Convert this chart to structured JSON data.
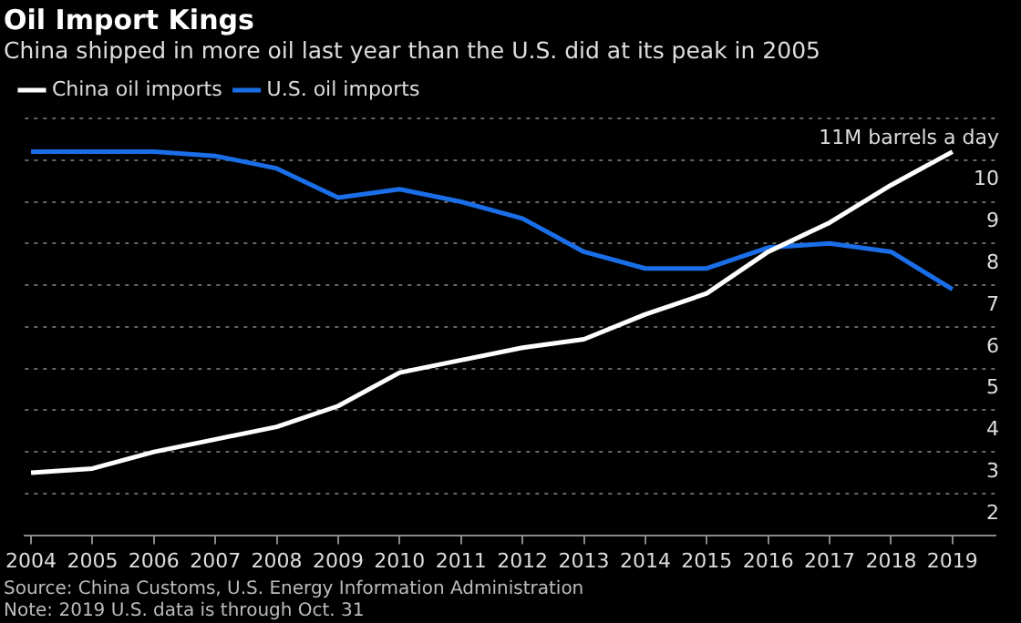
{
  "chart_data": {
    "type": "line",
    "title": "Oil Import Kings",
    "subtitle": "China shipped in more oil last year than the U.S. did at its peak in 2005",
    "x": [
      2004,
      2005,
      2006,
      2007,
      2008,
      2009,
      2010,
      2011,
      2012,
      2013,
      2014,
      2015,
      2016,
      2017,
      2018,
      2019
    ],
    "series": [
      {
        "name": "China oil imports",
        "color": "#ffffff",
        "values": [
          2.5,
          2.6,
          3.0,
          3.3,
          3.6,
          4.1,
          4.9,
          5.2,
          5.5,
          5.7,
          6.3,
          6.8,
          7.8,
          8.5,
          9.4,
          10.2
        ]
      },
      {
        "name": "U.S. oil imports",
        "color": "#1a6ee8",
        "values": [
          10.2,
          10.2,
          10.2,
          10.1,
          9.8,
          9.1,
          9.3,
          9.0,
          8.6,
          7.8,
          7.4,
          7.4,
          7.9,
          8.0,
          7.8,
          6.9
        ]
      }
    ],
    "xlim": [
      2003.9,
      2019.7
    ],
    "xticks": [
      2004,
      2005,
      2006,
      2007,
      2008,
      2009,
      2010,
      2011,
      2012,
      2013,
      2014,
      2015,
      2016,
      2017,
      2018,
      2019
    ],
    "ylim": [
      1,
      11
    ],
    "yticks": [
      2,
      3,
      4,
      5,
      6,
      7,
      8,
      9,
      10,
      {
        "value": 11,
        "label": "11M barrels a day"
      }
    ],
    "grid": "y",
    "legend": "top left",
    "marker": "none",
    "line_style": "solid",
    "annotations": [
      "Source: China Customs, U.S. Energy Information Administration",
      "Note: 2019 U.S. data is through Oct. 31"
    ]
  }
}
